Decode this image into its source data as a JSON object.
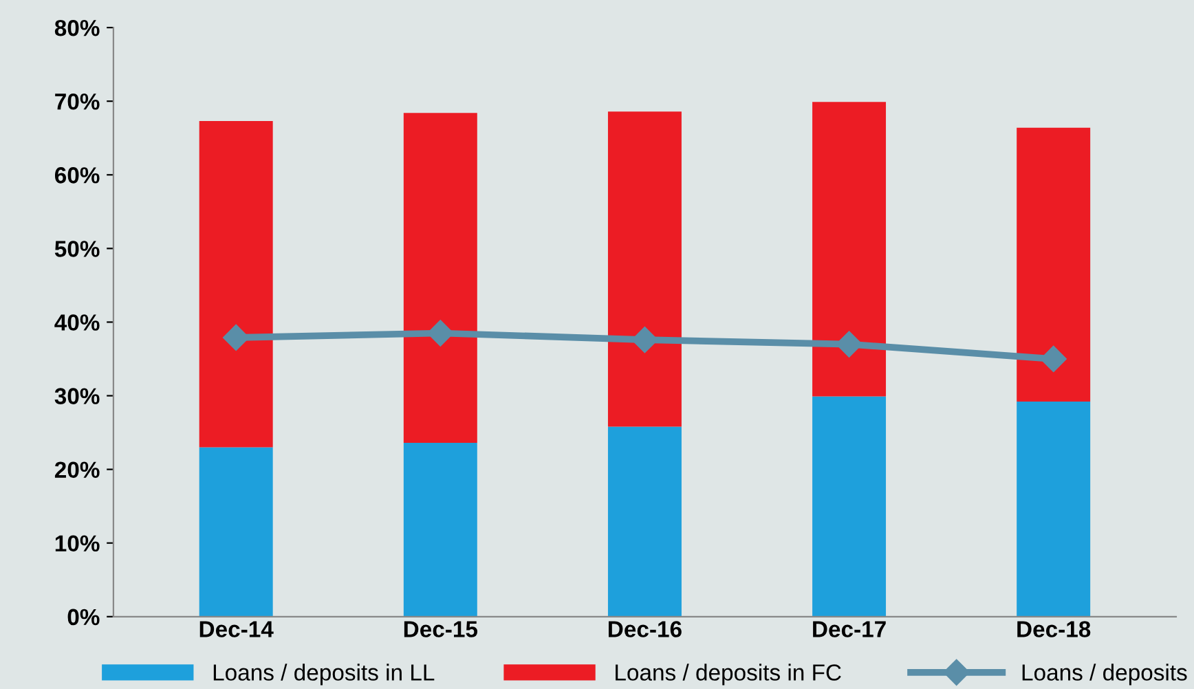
{
  "chart_data": {
    "type": "bar",
    "stacked": true,
    "categories": [
      "Dec-14",
      "Dec-15",
      "Dec-16",
      "Dec-17",
      "Dec-18"
    ],
    "series": [
      {
        "name": "Loans / deposits in LL",
        "color": "#1ea0dc",
        "values": [
          23.0,
          23.6,
          25.8,
          29.9,
          29.2
        ]
      },
      {
        "name": "Loans / deposits in FC",
        "color": "#ec1c24",
        "values": [
          44.3,
          44.8,
          42.8,
          40.0,
          37.2
        ]
      },
      {
        "name": "Loans / deposits",
        "color": "#5a8ea8",
        "type": "line",
        "marker": "diamond",
        "values": [
          37.9,
          38.5,
          37.6,
          37.0,
          35.0
        ]
      }
    ],
    "ylim": [
      0,
      80
    ],
    "yticks": [
      {
        "value": 0,
        "label": "0%"
      },
      {
        "value": 10,
        "label": "10%"
      },
      {
        "value": 20,
        "label": "20%"
      },
      {
        "value": 30,
        "label": "30%"
      },
      {
        "value": 40,
        "label": "40%"
      },
      {
        "value": 50,
        "label": "50%"
      },
      {
        "value": 60,
        "label": "60%"
      },
      {
        "value": 70,
        "label": "70%"
      },
      {
        "value": 80,
        "label": "80%"
      }
    ],
    "grid": false,
    "legend": "bottom"
  }
}
